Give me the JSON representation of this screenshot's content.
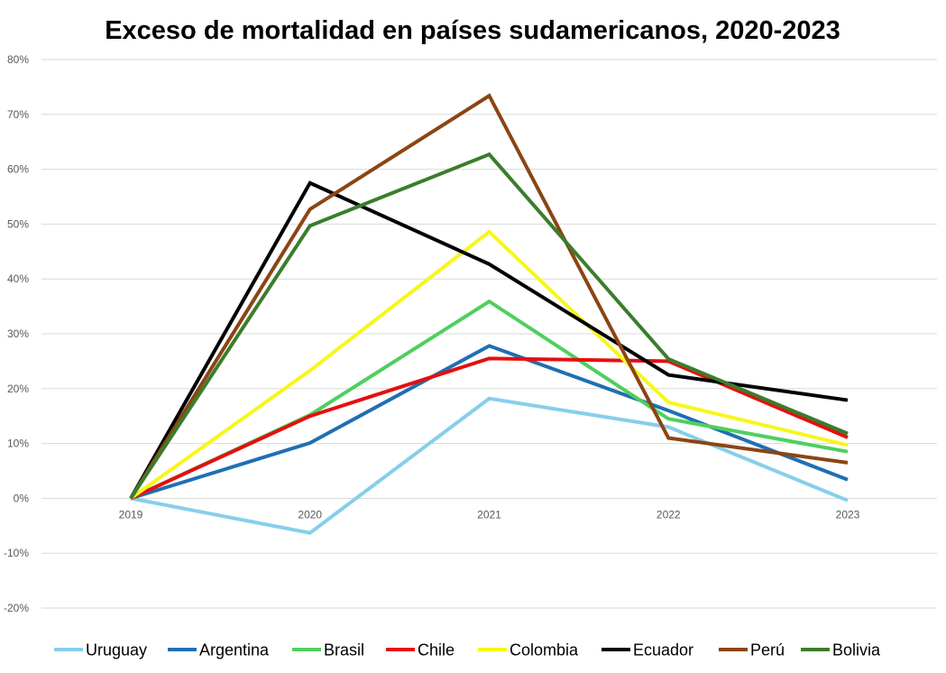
{
  "chart_data": {
    "type": "line",
    "title": "Exceso de mortalidad en países sudamericanos, 2020-2023",
    "xlabel": "",
    "ylabel": "",
    "x": [
      "2019",
      "2020",
      "2021",
      "2022",
      "2023"
    ],
    "ylim": [
      -0.2,
      0.8
    ],
    "yticks": [
      {
        "value": 0.8,
        "label": "80%"
      },
      {
        "value": 0.7,
        "label": "70%"
      },
      {
        "value": 0.6,
        "label": "60%"
      },
      {
        "value": 0.5,
        "label": "50%"
      },
      {
        "value": 0.4,
        "label": "40%"
      },
      {
        "value": 0.3,
        "label": "30%"
      },
      {
        "value": 0.2,
        "label": "20%"
      },
      {
        "value": 0.1,
        "label": "10%"
      },
      {
        "value": 0.0,
        "label": "0%"
      },
      {
        "value": -0.1,
        "label": "-10%"
      },
      {
        "value": -0.2,
        "label": "-20%"
      }
    ],
    "grid": true,
    "legend_position": "bottom",
    "series": [
      {
        "name": "Uruguay",
        "color": "#87CEEB",
        "values": [
          0,
          -0.063,
          0.182,
          0.13,
          -0.004
        ]
      },
      {
        "name": "Argentina",
        "color": "#1F6FB4",
        "values": [
          0,
          0.101,
          0.278,
          0.16,
          0.034
        ]
      },
      {
        "name": "Brasil",
        "color": "#4FCF5F",
        "values": [
          0,
          0.152,
          0.359,
          0.145,
          0.085
        ]
      },
      {
        "name": "Chile",
        "color": "#E50F0F",
        "values": [
          0,
          0.15,
          0.255,
          0.25,
          0.111
        ]
      },
      {
        "name": "Colombia",
        "color": "#F7F71A",
        "values": [
          0,
          0.233,
          0.486,
          0.175,
          0.097
        ]
      },
      {
        "name": "Ecuador",
        "color": "#000000",
        "values": [
          0,
          0.575,
          0.427,
          0.225,
          0.179
        ]
      },
      {
        "name": "Perú",
        "color": "#8B4513",
        "values": [
          0,
          0.527,
          0.734,
          0.11,
          0.065
        ]
      },
      {
        "name": "Bolivia",
        "color": "#3A7D2C",
        "values": [
          0,
          0.497,
          0.627,
          0.254,
          0.118
        ]
      }
    ]
  }
}
